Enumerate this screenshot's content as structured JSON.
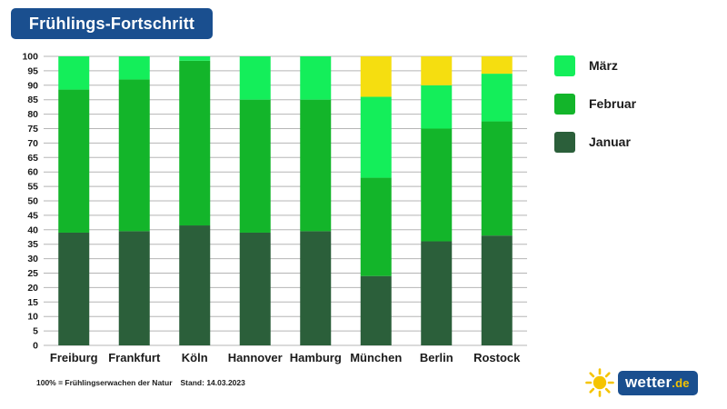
{
  "header": {
    "title": "Frühlings-Fortschritt"
  },
  "colors": {
    "januar": "#2b5f3a",
    "februar": "#13b52a",
    "maerz": "#14ee5a",
    "remaining": "#f5de10",
    "title_bg": "#1a4f8f",
    "grid": "#b5b5b5",
    "brand_accent": "#f5c400"
  },
  "legend": [
    {
      "label": "März",
      "color": "#14ee5a"
    },
    {
      "label": "Februar",
      "color": "#13b52a"
    },
    {
      "label": "Januar",
      "color": "#2b5f3a"
    }
  ],
  "chart_data": {
    "type": "bar",
    "stacked": true,
    "categories": [
      "Freiburg",
      "Frankfurt",
      "Köln",
      "Hannover",
      "Hamburg",
      "München",
      "Berlin",
      "Rostock"
    ],
    "series": [
      {
        "name": "Januar",
        "values": [
          39,
          39.5,
          41.5,
          39,
          39.5,
          24,
          36,
          38
        ]
      },
      {
        "name": "Februar",
        "values": [
          49.5,
          52.5,
          57,
          46,
          45.5,
          34,
          39,
          39.5
        ]
      },
      {
        "name": "März",
        "values": [
          11.5,
          8,
          1.5,
          15,
          15,
          28,
          15,
          16.5
        ]
      },
      {
        "name": "",
        "values": [
          0,
          0,
          0,
          0,
          0,
          14,
          10,
          6
        ]
      }
    ],
    "ylim": [
      0,
      100
    ],
    "yticks": [
      0,
      5,
      10,
      15,
      20,
      25,
      30,
      35,
      40,
      45,
      50,
      55,
      60,
      65,
      70,
      75,
      80,
      85,
      90,
      95,
      100
    ],
    "grid": true,
    "legend_position": "right"
  },
  "footer": {
    "note": "100% = Frühlingserwachen der Natur",
    "stand": "Stand: 14.03.2023"
  },
  "brand": {
    "name": "wetter",
    "tld": ".de",
    "icon": "sun-icon"
  }
}
